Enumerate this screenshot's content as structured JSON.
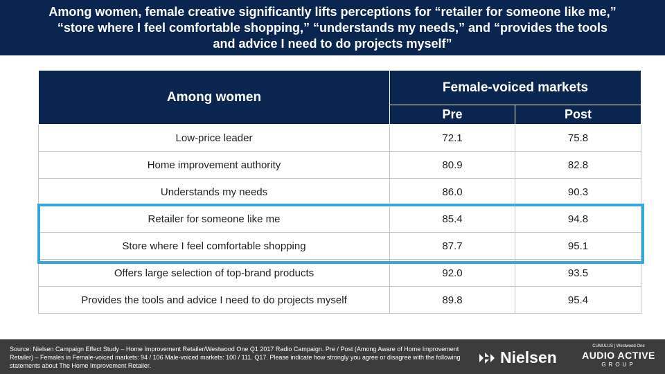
{
  "header": {
    "title": "Among women, female creative significantly lifts perceptions for “retailer for someone like me,” “store where I feel comfortable shopping,” “understands my needs,” and “provides the tools and advice I need to do projects myself”"
  },
  "table": {
    "corner_label": "Among women",
    "group_label": "Female-voiced  markets",
    "columns": [
      "Pre",
      "Post"
    ],
    "rows": [
      {
        "label": "Low-price leader",
        "pre": "72.1",
        "post": "75.8"
      },
      {
        "label": "Home improvement authority",
        "pre": "80.9",
        "post": "82.8"
      },
      {
        "label": "Understands my needs",
        "pre": "86.0",
        "post": "90.3"
      },
      {
        "label": "Retailer for someone like me",
        "pre": "85.4",
        "post": "94.8"
      },
      {
        "label": "Store where I feel comfortable shopping",
        "pre": "87.7",
        "post": "95.1"
      },
      {
        "label": "Offers large selection of top-brand products",
        "pre": "92.0",
        "post": "93.5"
      },
      {
        "label": "Provides the tools and advice I need to do projects myself",
        "pre": "89.8",
        "post": "95.4"
      }
    ],
    "highlight_color": "#37a6db"
  },
  "footer": {
    "source": "Source: Nielsen Campaign Effect Study – Home Improvement Retailer/Westwood One Q1 2017 Radio Campaign. Pre / Post (Among Aware of Home Improvement Retailer) – Females in Female-voiced markets: 94 / 106 Male-voiced markets: 100 / 111. Q17. Please indicate how strongly you agree or disagree with the following statements about The Home Improvement Retailer.",
    "nielsen_logo": "Nielsen",
    "partner_top": "CUMULUS | Westwood One",
    "partner_main": "AUDIO ACTIVE",
    "partner_sub": "GROUP"
  },
  "colors": {
    "navy": "#0b2551",
    "footer_bg": "#3c3c3c"
  }
}
